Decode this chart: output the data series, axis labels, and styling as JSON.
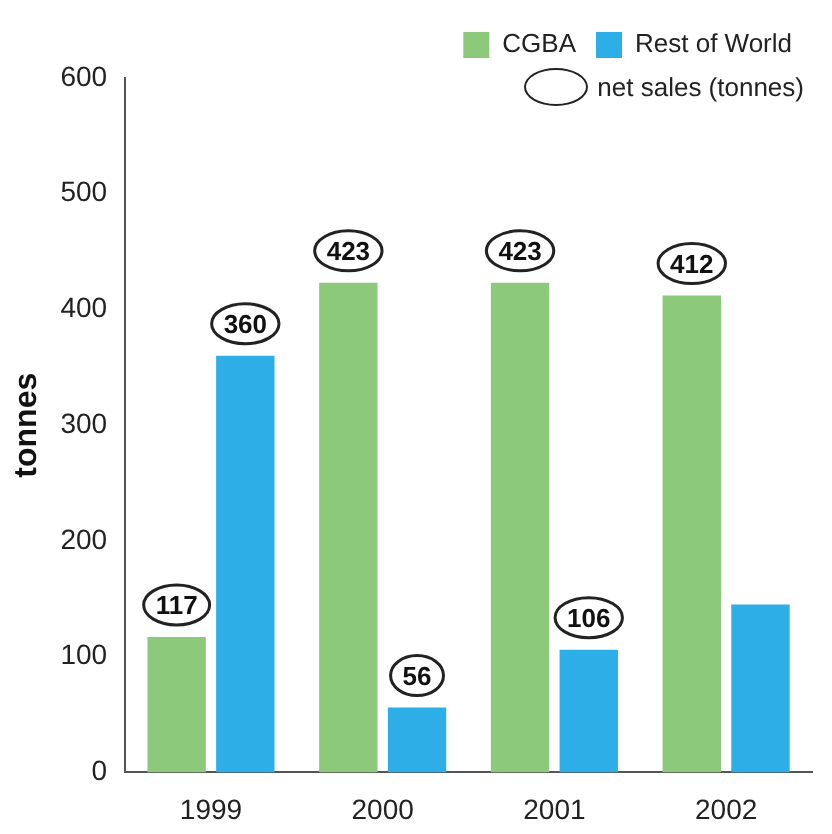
{
  "chart_data": {
    "type": "bar",
    "ylabel": "tonnes",
    "categories": [
      "1999",
      "2000",
      "2001",
      "2002"
    ],
    "series": [
      {
        "name": "CGBA",
        "color": "#8cc97a",
        "values": [
          117,
          423,
          423,
          412
        ],
        "value_labels": [
          "117",
          "423",
          "423",
          "412"
        ]
      },
      {
        "name": "Rest of World",
        "color": "#2eaee6",
        "values": [
          360,
          56,
          106,
          145
        ],
        "value_labels": [
          "360",
          "56",
          "106",
          null
        ]
      }
    ],
    "ylim": [
      0,
      600
    ],
    "yticks": [
      0,
      100,
      200,
      300,
      400,
      500,
      600
    ],
    "grid": false,
    "legend": "top right",
    "annotations": [
      "net sales (tonnes)"
    ]
  }
}
